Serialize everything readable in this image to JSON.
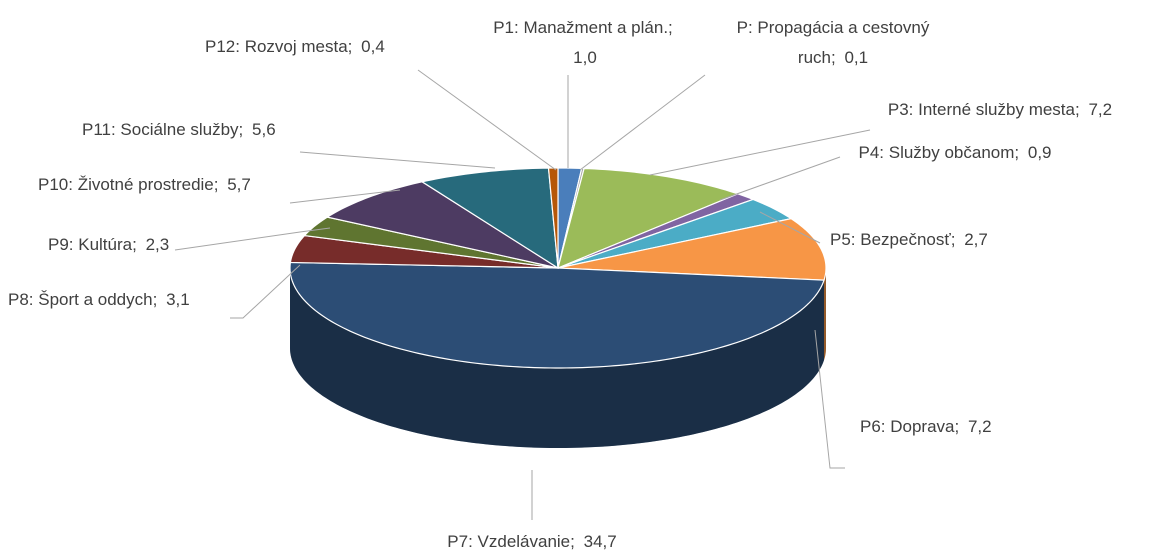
{
  "chart_data": {
    "type": "pie3d",
    "categories": [
      "P1: Manažment a plán.;",
      "P: Propagácia a cestovný ruch;",
      "P3: Interné služby mesta;",
      "P4: Služby občanom;",
      "P5: Bezpečnosť;",
      "P6: Doprava;",
      "P7: Vzdelávanie;",
      "P8: Šport a oddych;",
      "P9: Kultúra;",
      "P10: Životné prostredie;",
      "P11: Sociálne služby;",
      "P12: Rozvoj mesta;"
    ],
    "values": [
      1.0,
      0.1,
      7.2,
      0.9,
      2.7,
      7.2,
      34.7,
      3.1,
      2.3,
      5.7,
      5.6,
      0.4
    ],
    "value_labels": [
      "1,0",
      "0,1",
      "7,2",
      "0,9",
      "2,7",
      "7,2",
      "34,7",
      "3,1",
      "2,3",
      "5,7",
      "5,6",
      "0,4"
    ],
    "colors": [
      "#4a7ebb",
      "#a5a5a5",
      "#9bbb59",
      "#8064a2",
      "#4bacc6",
      "#f79646",
      "#2c4d75",
      "#772c2a",
      "#5f7530",
      "#4d3b62",
      "#276a7c",
      "#b65708"
    ]
  }
}
